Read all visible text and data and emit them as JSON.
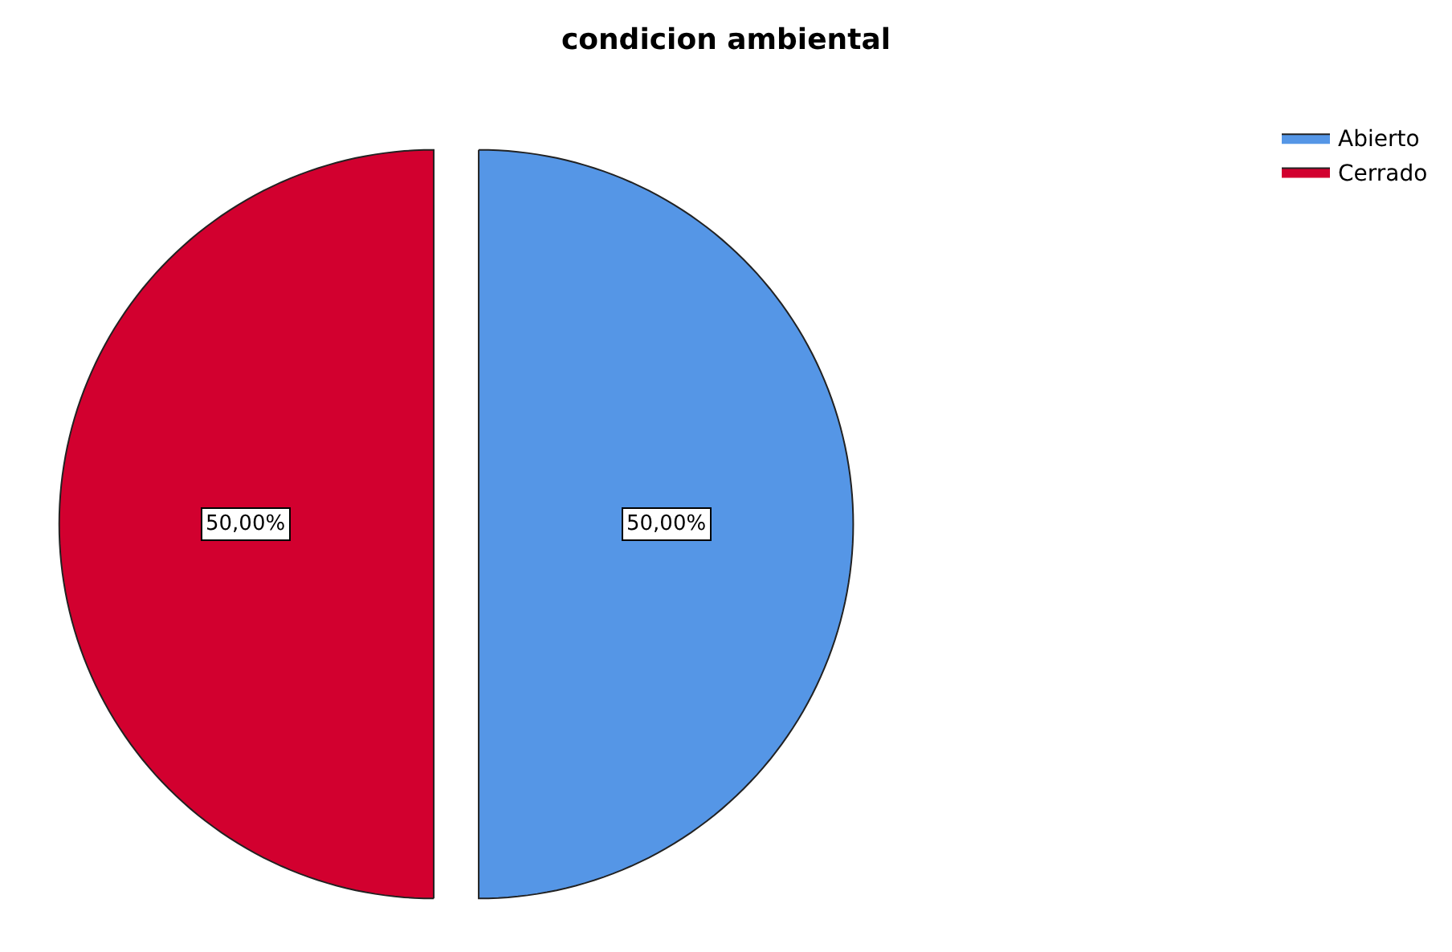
{
  "chart_data": {
    "type": "pie",
    "title": "condicion ambiental",
    "categories": [
      "Abierto",
      "Cerrado"
    ],
    "values": [
      50,
      50
    ],
    "colors": [
      "#5596e6",
      "#d2002f"
    ],
    "value_labels": [
      "50,00%",
      "50,00%"
    ],
    "legend": "top right"
  }
}
